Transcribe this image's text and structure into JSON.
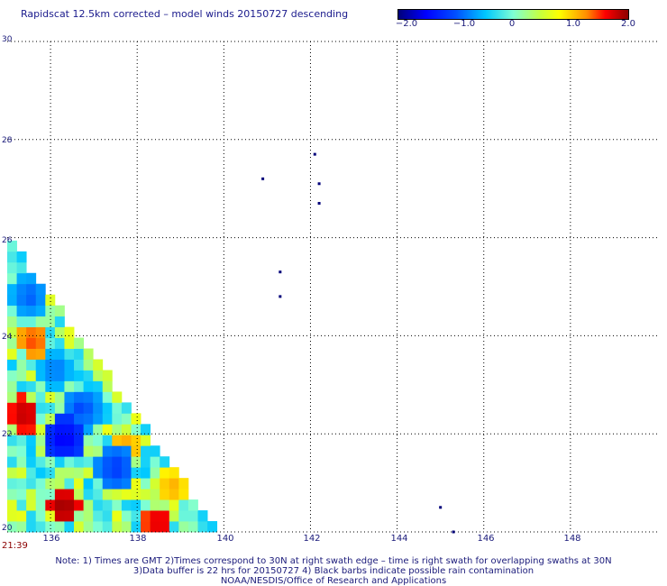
{
  "title": "Rapidscat 12.5km corrected – model winds 20150727 descending",
  "colorbar": {
    "ticks": [
      "−2.0",
      "−1.0",
      "0",
      "1.0",
      "2.0"
    ],
    "tick_values": [
      -2.0,
      -1.0,
      0,
      1.0,
      2.0
    ],
    "range": [
      -2.0,
      2.0
    ]
  },
  "lat_labels": [
    "30",
    "28",
    "26",
    "24",
    "22",
    "20"
  ],
  "lon_labels": [
    "136",
    "138",
    "140",
    "142",
    "144",
    "146",
    "148"
  ],
  "time_label": "21:39",
  "notes": [
    "Note: 1) Times are GMT 2)Times correspond to 30N at right swath edge – time is right swath for overlapping swaths at 30N",
    "3)Data buffer is 22 hrs for 20150727 4) Black barbs indicate possible rain contamination",
    "NOAA/NESDIS/Office of Research and Applications"
  ],
  "chart_data": {
    "type": "heatmap",
    "xlabel": "",
    "ylabel": "",
    "xlim": [
      135,
      150
    ],
    "ylim": [
      20,
      30
    ],
    "x_ticks": [
      136,
      138,
      140,
      142,
      144,
      146,
      148
    ],
    "y_ticks": [
      20,
      22,
      24,
      26,
      28,
      30
    ],
    "grid": true,
    "swath_edge": [
      [
        135,
        25.8
      ],
      [
        139.7,
        20
      ]
    ],
    "isolated_points": [
      {
        "lon": 140.9,
        "lat": 27.2
      },
      {
        "lon": 142.1,
        "lat": 27.7
      },
      {
        "lon": 142.2,
        "lat": 27.1
      },
      {
        "lon": 142.2,
        "lat": 26.7
      },
      {
        "lon": 141.3,
        "lat": 25.3
      },
      {
        "lon": 141.3,
        "lat": 24.8
      },
      {
        "lon": 145.0,
        "lat": 20.5
      },
      {
        "lon": 145.3,
        "lat": 20.0
      }
    ],
    "hotspots": [
      {
        "lon": 136.2,
        "lat": 20.4,
        "value": 2.0
      },
      {
        "lon": 138.4,
        "lat": 20.1,
        "value": 1.8
      },
      {
        "lon": 135.3,
        "lat": 22.3,
        "value": 1.9
      },
      {
        "lon": 135.5,
        "lat": 23.8,
        "value": 1.5
      },
      {
        "lon": 137.6,
        "lat": 21.6,
        "value": 1.3
      },
      {
        "lon": 138.7,
        "lat": 20.8,
        "value": 1.2
      }
    ],
    "coldspots": [
      {
        "lon": 136.2,
        "lat": 21.8,
        "value": -1.6
      },
      {
        "lon": 135.4,
        "lat": 24.7,
        "value": -1.0
      },
      {
        "lon": 136.6,
        "lat": 22.4,
        "value": -1.1
      },
      {
        "lon": 137.4,
        "lat": 21.2,
        "value": -1.2
      },
      {
        "lon": 136.0,
        "lat": 23.2,
        "value": -0.9
      }
    ]
  }
}
